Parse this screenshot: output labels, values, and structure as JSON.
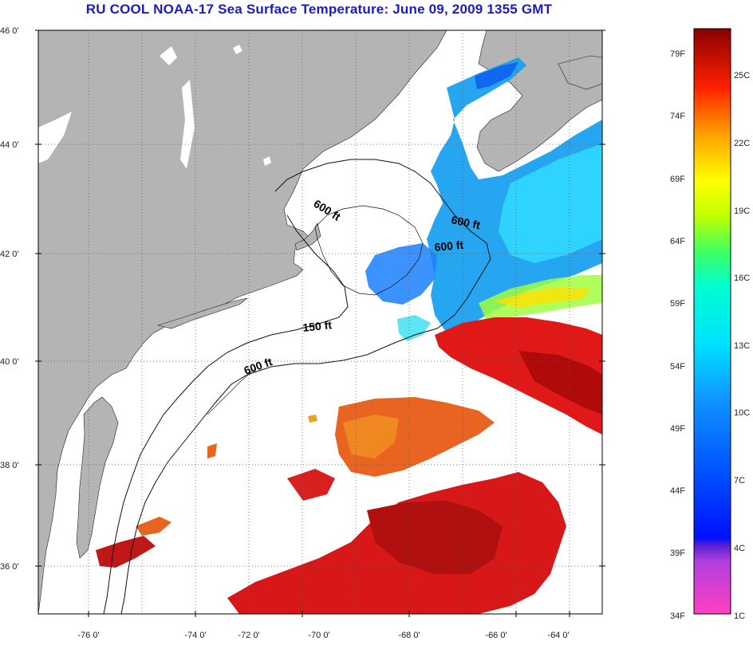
{
  "title": "RU COOL  NOAA-17  Sea Surface Temperature:  June 09, 2009 1355 GMT",
  "map": {
    "lat_labels": [
      "46 0'",
      "44 0'",
      "42 0'",
      "40 0'",
      "38 0'",
      "36 0'"
    ],
    "lon_labels": [
      "-76 0'",
      "-74 0'",
      "-72 0'",
      "-70 0'",
      "-68 0'",
      "-66 0'",
      "-64 0'"
    ],
    "contour_labels": {
      "c1": "600 ft",
      "c2": "600 ft",
      "c3": "600 ft",
      "c4": "150 ft",
      "c5": "600 ft"
    }
  },
  "colorbar": {
    "fahrenheit": [
      "79F",
      "74F",
      "69F",
      "64F",
      "59F",
      "54F",
      "49F",
      "44F",
      "39F",
      "34F"
    ],
    "celsius": [
      "25C",
      "22C",
      "19C",
      "16C",
      "13C",
      "10C",
      "7C",
      "4C",
      "1C"
    ]
  },
  "colors": {
    "land": "#b4b4b4",
    "title": "#1a1acc",
    "warm": "#d81212",
    "cool": "#22c8f0"
  }
}
